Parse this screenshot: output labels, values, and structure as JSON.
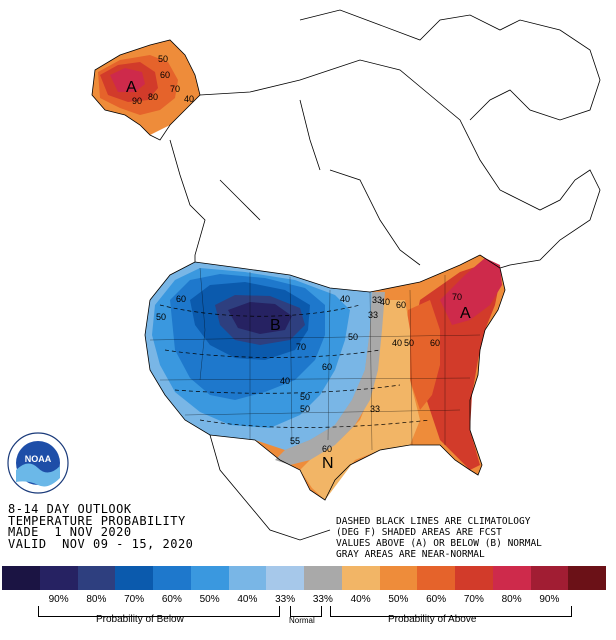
{
  "map": {
    "high_centers": {
      "west": "B",
      "south": "N",
      "alaska": "A",
      "northeast": "A"
    },
    "contour_labels": [
      "50",
      "60",
      "70",
      "80",
      "90",
      "40",
      "60",
      "50",
      "40",
      "33",
      "50",
      "60",
      "70",
      "50",
      "40",
      "33",
      "60",
      "55",
      "50",
      "60",
      "40",
      "50",
      "60",
      "70",
      "33",
      "40"
    ]
  },
  "header": {
    "line1": "8-14 DAY OUTLOOK",
    "line2": "TEMPERATURE PROBABILITY",
    "line3": "MADE  1 NOV 2020",
    "line4": "VALID  NOV 09 - 15, 2020"
  },
  "notes": {
    "line1": "DASHED BLACK LINES ARE CLIMATOLOGY",
    "line2": "(DEG F) SHADED AREAS ARE FCST",
    "line3": "VALUES ABOVE (A) OR BELOW (B) NORMAL",
    "line4": "GRAY AREAS ARE NEAR-NORMAL"
  },
  "legend": {
    "colors": [
      "#1b1443",
      "#262262",
      "#2e3f7f",
      "#0b5aad",
      "#1e78cc",
      "#3a98df",
      "#79b6e6",
      "#a6c8ea",
      "#a9a9a9",
      "#f2b566",
      "#ee8c3a",
      "#e5632b",
      "#d23b2a",
      "#ce2a4b",
      "#a11d33",
      "#6b1117"
    ],
    "ticks": [
      "90%",
      "80%",
      "70%",
      "60%",
      "50%",
      "40%",
      "33%",
      "33%",
      "40%",
      "50%",
      "60%",
      "70%",
      "80%",
      "90%"
    ],
    "below_label": "Probability of Below",
    "normal_label": "Normal",
    "above_label": "Probability of Above"
  },
  "logo": {
    "text": "NOAA"
  }
}
